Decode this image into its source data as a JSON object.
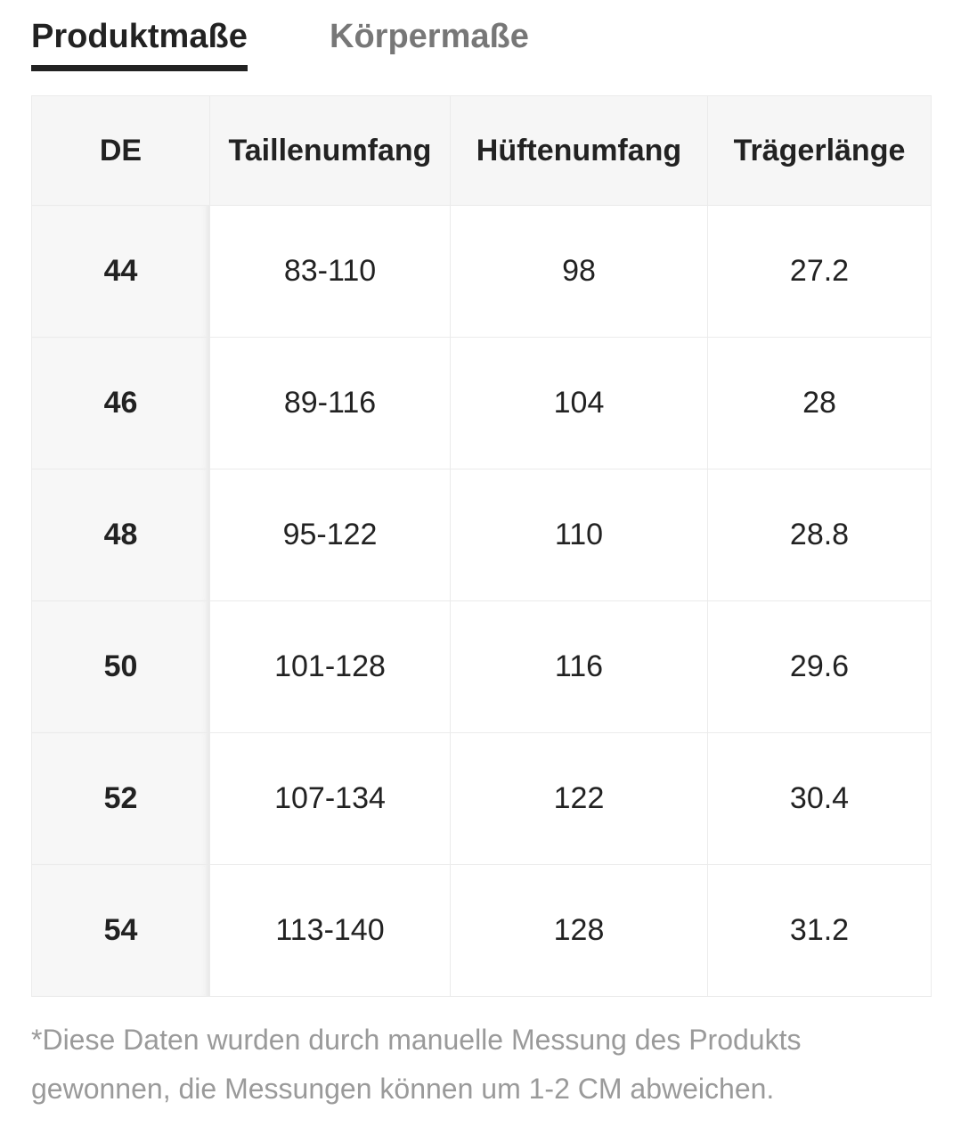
{
  "tabs": [
    "Produktmaße",
    "Körpermaße"
  ],
  "table": {
    "header": [
      "DE",
      "Taillenumfang",
      "Hüftenumfang",
      "Trägerlänge"
    ],
    "rows": [
      [
        "44",
        "83-110",
        "98",
        "27.2"
      ],
      [
        "46",
        "89-116",
        "104",
        "28"
      ],
      [
        "48",
        "95-122",
        "110",
        "28.8"
      ],
      [
        "50",
        "101-128",
        "116",
        "29.6"
      ],
      [
        "52",
        "107-134",
        "122",
        "30.4"
      ],
      [
        "54",
        "113-140",
        "128",
        "31.2"
      ]
    ]
  },
  "footnote": "*Diese Daten wurden durch manuelle Messung des Produkts gewonnen, die Messungen können um 1-2 CM abweichen."
}
